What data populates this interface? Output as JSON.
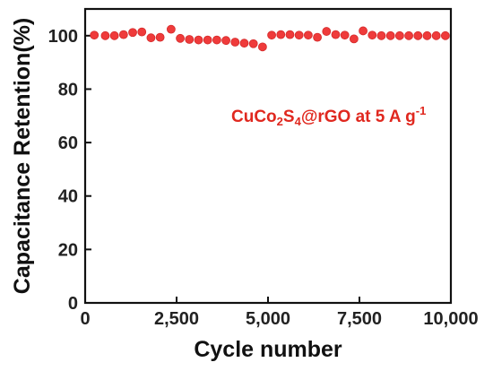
{
  "chart_data": {
    "type": "scatter",
    "title": "",
    "xlabel": "Cycle number",
    "ylabel": "Capacitance Retention(%)",
    "xlim": [
      0,
      10000
    ],
    "ylim": [
      0,
      110
    ],
    "xticks": [
      0,
      2500,
      5000,
      7500,
      10000
    ],
    "xtick_labels": [
      "0",
      "2,500",
      "5,000",
      "7,500",
      "10,000"
    ],
    "yticks": [
      0,
      20,
      40,
      60,
      80,
      100
    ],
    "ytick_labels": [
      "0",
      "20",
      "40",
      "60",
      "80",
      "100"
    ],
    "grid": false,
    "marker_color": "#ef3b3b",
    "annotation": {
      "main": "CuCo",
      "sub1": "2",
      "mid": "S",
      "sub2": "4",
      "rest": "@rGO at 5 A g",
      "sup": "-1",
      "color": "#e0281f"
    },
    "series": [
      {
        "x": [
          250,
          550,
          800,
          1050,
          1300,
          1550,
          1800,
          2050,
          2350,
          2600,
          2850,
          3100,
          3350,
          3600,
          3850,
          4100,
          4350,
          4600,
          4850,
          5100,
          5350,
          5600,
          5850,
          6100,
          6350,
          6600,
          6850,
          7100,
          7350,
          7600,
          7850,
          8100,
          8350,
          8600,
          8850,
          9100,
          9350,
          9600,
          9850
        ],
        "y": [
          100.2,
          100.0,
          100.0,
          100.4,
          101.2,
          101.4,
          99.2,
          99.4,
          102.4,
          99.0,
          98.6,
          98.4,
          98.4,
          98.4,
          98.2,
          97.6,
          97.2,
          97.0,
          95.8,
          100.2,
          100.4,
          100.4,
          100.2,
          100.2,
          99.4,
          101.6,
          100.4,
          100.2,
          98.8,
          101.8,
          100.2,
          100.0,
          100.0,
          100.0,
          100.0,
          100.0,
          100.0,
          100.0,
          100.0
        ]
      }
    ]
  }
}
